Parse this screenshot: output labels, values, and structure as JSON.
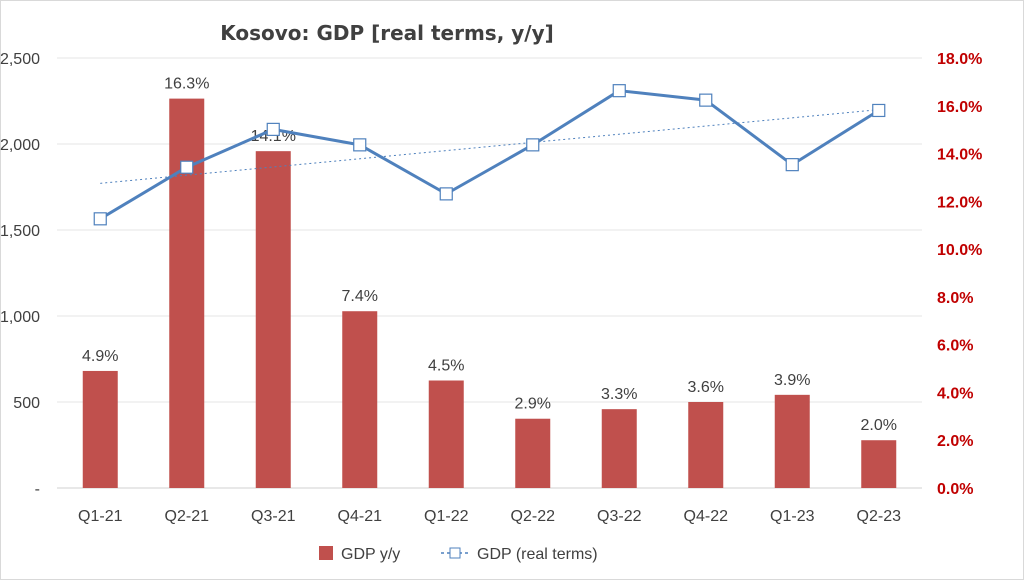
{
  "chart_data": {
    "type": "bar",
    "title": "Kosovo: GDP [real terms, y/y]",
    "categories": [
      "Q1-21",
      "Q2-21",
      "Q3-21",
      "Q4-21",
      "Q1-22",
      "Q2-22",
      "Q3-22",
      "Q4-22",
      "Q1-23",
      "Q2-23"
    ],
    "series": [
      {
        "name": "GDP y/y",
        "type": "bar",
        "axis": "right",
        "values": [
          4.9,
          16.3,
          14.1,
          7.4,
          4.5,
          2.9,
          3.3,
          3.6,
          3.9,
          2.0
        ],
        "labels": [
          "4.9%",
          "16.3%",
          "14.1%",
          "7.4%",
          "4.5%",
          "2.9%",
          "3.3%",
          "3.6%",
          "3.9%",
          "2.0%"
        ],
        "color": "#c0504d"
      },
      {
        "name": "GDP (real terms)",
        "type": "line",
        "axis": "left",
        "values": [
          1565,
          1865,
          2085,
          1995,
          1710,
          1995,
          2310,
          2255,
          1880,
          2195
        ],
        "color": "#4f81bd",
        "marker": "open-square",
        "trendline": "linear dotted"
      }
    ],
    "left_axis": {
      "ylim": [
        0,
        2500
      ],
      "ticks": [
        0,
        500,
        1000,
        1500,
        2000,
        2500
      ],
      "tick_labels": [
        "-",
        "500",
        "1,000",
        "1,500",
        "2,000",
        "2,500"
      ]
    },
    "right_axis": {
      "ylim": [
        0,
        18
      ],
      "ticks": [
        0,
        2,
        4,
        6,
        8,
        10,
        12,
        14,
        16,
        18
      ],
      "tick_labels": [
        "0.0%",
        "2.0%",
        "4.0%",
        "6.0%",
        "8.0%",
        "10.0%",
        "12.0%",
        "14.0%",
        "16.0%",
        "18.0%"
      ],
      "color": "#c00000"
    },
    "grid": true,
    "legend_position": "bottom"
  }
}
